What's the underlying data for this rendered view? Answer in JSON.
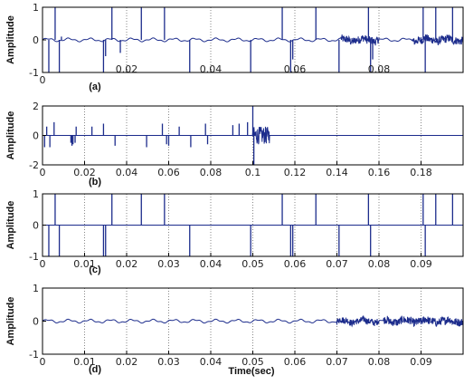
{
  "chart_data": [
    {
      "type": "line",
      "panel_label": "(a)",
      "ylabel": "Amplitude",
      "xlabel": "",
      "xlim": [
        0,
        0.1
      ],
      "ylim": [
        -1,
        1
      ],
      "xticks": [
        0,
        0.02,
        0.04,
        0.06,
        0.08
      ],
      "xtick_labels": [
        "0",
        "0.02",
        "0.04",
        "0.06",
        "0.08"
      ],
      "yticks": [
        -1,
        0,
        1
      ],
      "ytick_labels": [
        "-1",
        "0",
        "1"
      ],
      "grid": "vertical-dotted",
      "line_color": "#1c2c8c",
      "baseline_wave": {
        "amplitude": 0.06,
        "period": 0.005
      },
      "noisy_segments": [
        {
          "from": 0.071,
          "to": 0.08,
          "amplitude": 0.12
        },
        {
          "from": 0.088,
          "to": 0.1,
          "amplitude": 0.12
        }
      ],
      "spikes": [
        {
          "x": 0.0015,
          "y": -1
        },
        {
          "x": 0.003,
          "y": 1
        },
        {
          "x": 0.004,
          "y": -1
        },
        {
          "x": 0.0045,
          "y": 0.1
        },
        {
          "x": 0.0145,
          "y": -1
        },
        {
          "x": 0.015,
          "y": -0.5
        },
        {
          "x": 0.0165,
          "y": 1
        },
        {
          "x": 0.0185,
          "y": -0.4
        },
        {
          "x": 0.0235,
          "y": 1
        },
        {
          "x": 0.029,
          "y": 1
        },
        {
          "x": 0.035,
          "y": -1
        },
        {
          "x": 0.0495,
          "y": -1
        },
        {
          "x": 0.057,
          "y": 1
        },
        {
          "x": 0.059,
          "y": -1
        },
        {
          "x": 0.0595,
          "y": -0.6
        },
        {
          "x": 0.065,
          "y": 1
        },
        {
          "x": 0.0705,
          "y": -1
        },
        {
          "x": 0.0775,
          "y": 1
        },
        {
          "x": 0.078,
          "y": -1
        },
        {
          "x": 0.0785,
          "y": -0.6
        },
        {
          "x": 0.0905,
          "y": 1
        },
        {
          "x": 0.091,
          "y": -1
        },
        {
          "x": 0.0935,
          "y": 1
        },
        {
          "x": 0.0975,
          "y": 1
        }
      ]
    },
    {
      "type": "line",
      "panel_label": "(b)",
      "ylabel": "Amplitude",
      "xlabel": "",
      "xlim": [
        0,
        0.2
      ],
      "ylim": [
        -2,
        2
      ],
      "xticks": [
        0,
        0.02,
        0.04,
        0.06,
        0.08,
        0.1,
        0.12,
        0.14,
        0.16,
        0.18
      ],
      "xtick_labels": [
        "0",
        "0.02",
        "0.04",
        "0.06",
        "0.08",
        "0.1",
        "0.12",
        "0.14",
        "0.16",
        "0.18"
      ],
      "yticks": [
        -2,
        0,
        2
      ],
      "ytick_labels": [
        "-2",
        "0",
        "2"
      ],
      "grid": "vertical-dotted",
      "line_color": "#1c2c8c",
      "baseline_wave": {
        "amplitude": 0.0,
        "period": 0.01
      },
      "noisy_segments": [
        {
          "from": 0.1,
          "to": 0.108,
          "amplitude": 0.6
        }
      ],
      "spikes": [
        {
          "x": 0.001,
          "y": -0.8
        },
        {
          "x": 0.002,
          "y": 0.6
        },
        {
          "x": 0.0035,
          "y": -0.8
        },
        {
          "x": 0.0055,
          "y": 0.9
        },
        {
          "x": 0.0135,
          "y": -0.5
        },
        {
          "x": 0.014,
          "y": -0.7
        },
        {
          "x": 0.0145,
          "y": -0.6
        },
        {
          "x": 0.0155,
          "y": -0.5
        },
        {
          "x": 0.016,
          "y": 0.6
        },
        {
          "x": 0.0235,
          "y": 0.6
        },
        {
          "x": 0.029,
          "y": 0.8
        },
        {
          "x": 0.0345,
          "y": -0.7
        },
        {
          "x": 0.0495,
          "y": -0.8
        },
        {
          "x": 0.057,
          "y": 0.8
        },
        {
          "x": 0.059,
          "y": -0.6
        },
        {
          "x": 0.06,
          "y": -0.7
        },
        {
          "x": 0.065,
          "y": 0.6
        },
        {
          "x": 0.0705,
          "y": -0.8
        },
        {
          "x": 0.0775,
          "y": 0.8
        },
        {
          "x": 0.0785,
          "y": -0.6
        },
        {
          "x": 0.0905,
          "y": 0.7
        },
        {
          "x": 0.0935,
          "y": 0.8
        },
        {
          "x": 0.0975,
          "y": 0.9
        },
        {
          "x": 0.1,
          "y": 2
        },
        {
          "x": 0.1005,
          "y": -2
        }
      ]
    },
    {
      "type": "line",
      "panel_label": "(c)",
      "ylabel": "Amplitude",
      "xlabel": "",
      "xlim": [
        0,
        0.1
      ],
      "ylim": [
        -1,
        1
      ],
      "xticks": [
        0,
        0.01,
        0.02,
        0.03,
        0.04,
        0.05,
        0.06,
        0.07,
        0.08,
        0.09
      ],
      "xtick_labels": [
        "0",
        "0.01",
        "0.02",
        "0.03",
        "0.04",
        "0.05",
        "0.06",
        "0.07",
        "0.08",
        "0.09"
      ],
      "yticks": [
        -1,
        0,
        1
      ],
      "ytick_labels": [
        "-1",
        "0",
        "1"
      ],
      "grid": "vertical-dotted",
      "line_color": "#1c2c8c",
      "baseline_wave": {
        "amplitude": 0.0,
        "period": 0.005
      },
      "noisy_segments": [],
      "spikes": [
        {
          "x": 0.0015,
          "y": -1
        },
        {
          "x": 0.003,
          "y": 1
        },
        {
          "x": 0.004,
          "y": -1
        },
        {
          "x": 0.0145,
          "y": -1
        },
        {
          "x": 0.015,
          "y": -1
        },
        {
          "x": 0.0165,
          "y": 1
        },
        {
          "x": 0.0235,
          "y": 1
        },
        {
          "x": 0.029,
          "y": 1
        },
        {
          "x": 0.035,
          "y": -1
        },
        {
          "x": 0.0495,
          "y": -1
        },
        {
          "x": 0.057,
          "y": 1
        },
        {
          "x": 0.059,
          "y": -1
        },
        {
          "x": 0.0595,
          "y": -1
        },
        {
          "x": 0.065,
          "y": 1
        },
        {
          "x": 0.0705,
          "y": -1
        },
        {
          "x": 0.0775,
          "y": 1
        },
        {
          "x": 0.078,
          "y": -1
        },
        {
          "x": 0.0905,
          "y": 1
        },
        {
          "x": 0.091,
          "y": -1
        },
        {
          "x": 0.0935,
          "y": 1
        },
        {
          "x": 0.0975,
          "y": 1
        }
      ]
    },
    {
      "type": "line",
      "panel_label": "(d)",
      "ylabel": "Amplitude",
      "xlabel": "Time(sec)",
      "xlim": [
        0,
        0.1
      ],
      "ylim": [
        -1,
        1
      ],
      "xticks": [
        0,
        0.01,
        0.02,
        0.03,
        0.04,
        0.05,
        0.06,
        0.07,
        0.08,
        0.09
      ],
      "xtick_labels": [
        "0",
        "0.01",
        "0.02",
        "0.03",
        "0.04",
        "0.05",
        "0.06",
        "0.07",
        "0.08",
        "0.09"
      ],
      "yticks": [
        -1,
        0,
        1
      ],
      "ytick_labels": [
        "-1",
        "0",
        "1"
      ],
      "grid": "vertical-dotted",
      "line_color": "#1c2c8c",
      "baseline_wave": {
        "amplitude": 0.06,
        "period": 0.005
      },
      "noisy_segments": [
        {
          "from": 0.07,
          "to": 0.08,
          "amplitude": 0.1
        },
        {
          "from": 0.081,
          "to": 0.1,
          "amplitude": 0.12
        }
      ],
      "spikes": []
    }
  ]
}
